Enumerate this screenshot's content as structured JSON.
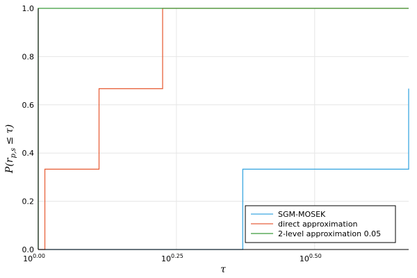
{
  "chart_data": {
    "type": "line",
    "step": "post",
    "xlabel": "τ",
    "ylabel": "P(r_{p,s} ≤ τ)",
    "ylabel_parts": {
      "main": "P(r",
      "sub": "p,s",
      "rest": " ≤ τ)"
    },
    "x_scale": "log10",
    "xlim_exponent": [
      0.0,
      0.67
    ],
    "ylim": [
      0.0,
      1.0
    ],
    "x_ticks": [
      {
        "base": "10",
        "exp": "0.00",
        "value": 0.0
      },
      {
        "base": "10",
        "exp": "0.25",
        "value": 0.25
      },
      {
        "base": "10",
        "exp": "0.50",
        "value": 0.5
      }
    ],
    "y_ticks": [
      "0.0",
      "0.2",
      "0.4",
      "0.6",
      "0.8",
      "1.0"
    ],
    "grid": true,
    "legend_position": "bottom-right",
    "series": [
      {
        "name": "SGM-MOSEK",
        "color": "#3ca7e0",
        "x_exponent": [
          0.0,
          0.37,
          0.37,
          0.67,
          0.67
        ],
        "y": [
          0.0,
          0.0,
          0.333,
          0.333,
          0.667
        ]
      },
      {
        "name": "direct approximation",
        "color": "#e8623c",
        "x_exponent": [
          0.0,
          0.012,
          0.012,
          0.11,
          0.11,
          0.225,
          0.225,
          0.67
        ],
        "y": [
          0.0,
          0.0,
          0.333,
          0.333,
          0.667,
          0.667,
          1.0,
          1.0
        ]
      },
      {
        "name": "2-level approximation 0.05",
        "color": "#3a9b3a",
        "x_exponent": [
          0.0,
          0.0,
          0.67
        ],
        "y": [
          0.0,
          1.0,
          1.0
        ]
      }
    ]
  }
}
